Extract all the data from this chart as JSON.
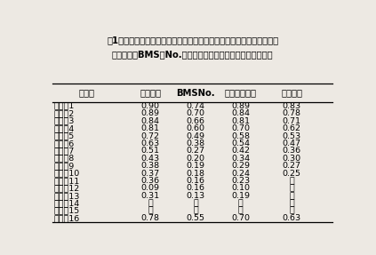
{
  "title_line1": "表1　スキャンによる胸最長筋画像の各色の割合と脂肪含量，牛肉脂肪",
  "title_line2": "交雑模型（BMS）No.，脂肪交雑及び肉質等級との相関関係",
  "col_headers": [
    "色番号",
    "脂肪含量",
    "BMSNo.",
    "脂肪交雑等級",
    "肉質等級"
  ],
  "rows": [
    [
      "青色　1",
      "0.90",
      "0.74",
      "0.89",
      "0.83"
    ],
    [
      "　　　2",
      "0.89",
      "0.70",
      "0.84",
      "0.78"
    ],
    [
      "青緑色3",
      "0.84",
      "0.66",
      "0.81",
      "0.71"
    ],
    [
      "　　　4",
      "0.81",
      "0.60",
      "0.70",
      "0.62"
    ],
    [
      "　　　5",
      "0.72",
      "0.49",
      "0.58",
      "0.53"
    ],
    [
      "緑色　6",
      "0.63",
      "0.38",
      "0.54",
      "0.47"
    ],
    [
      "白色　7",
      "0.51",
      "0.27",
      "0.42",
      "0.36"
    ],
    [
      "黄色　8",
      "0.43",
      "0.20",
      "0.34",
      "0.30"
    ],
    [
      "　　　9",
      "0.38",
      "0.19",
      "0.29",
      "0.27"
    ],
    [
      "桃色　10",
      "0.37",
      "0.18",
      "0.24",
      "0.25"
    ],
    [
      "　　　11",
      "0.36",
      "0.16",
      "0.23",
      "－"
    ],
    [
      "橙色　12",
      "0.09",
      "0.16",
      "0.10",
      "－"
    ],
    [
      "　　　13",
      "0.31",
      "0.13",
      "0.19",
      "－"
    ],
    [
      "　　　14",
      "－",
      "－",
      "－",
      "－"
    ],
    [
      "赤色　15",
      "－",
      "－",
      "－",
      "－"
    ],
    [
      "ドット16",
      "0.78",
      "0.55",
      "0.70",
      "0.63"
    ]
  ],
  "figsize": [
    4.23,
    2.87
  ],
  "dpi": 100,
  "bg_color": "#ede9e3",
  "title_fontsize": 7.2,
  "header_fontsize": 7.2,
  "cell_fontsize": 6.8
}
